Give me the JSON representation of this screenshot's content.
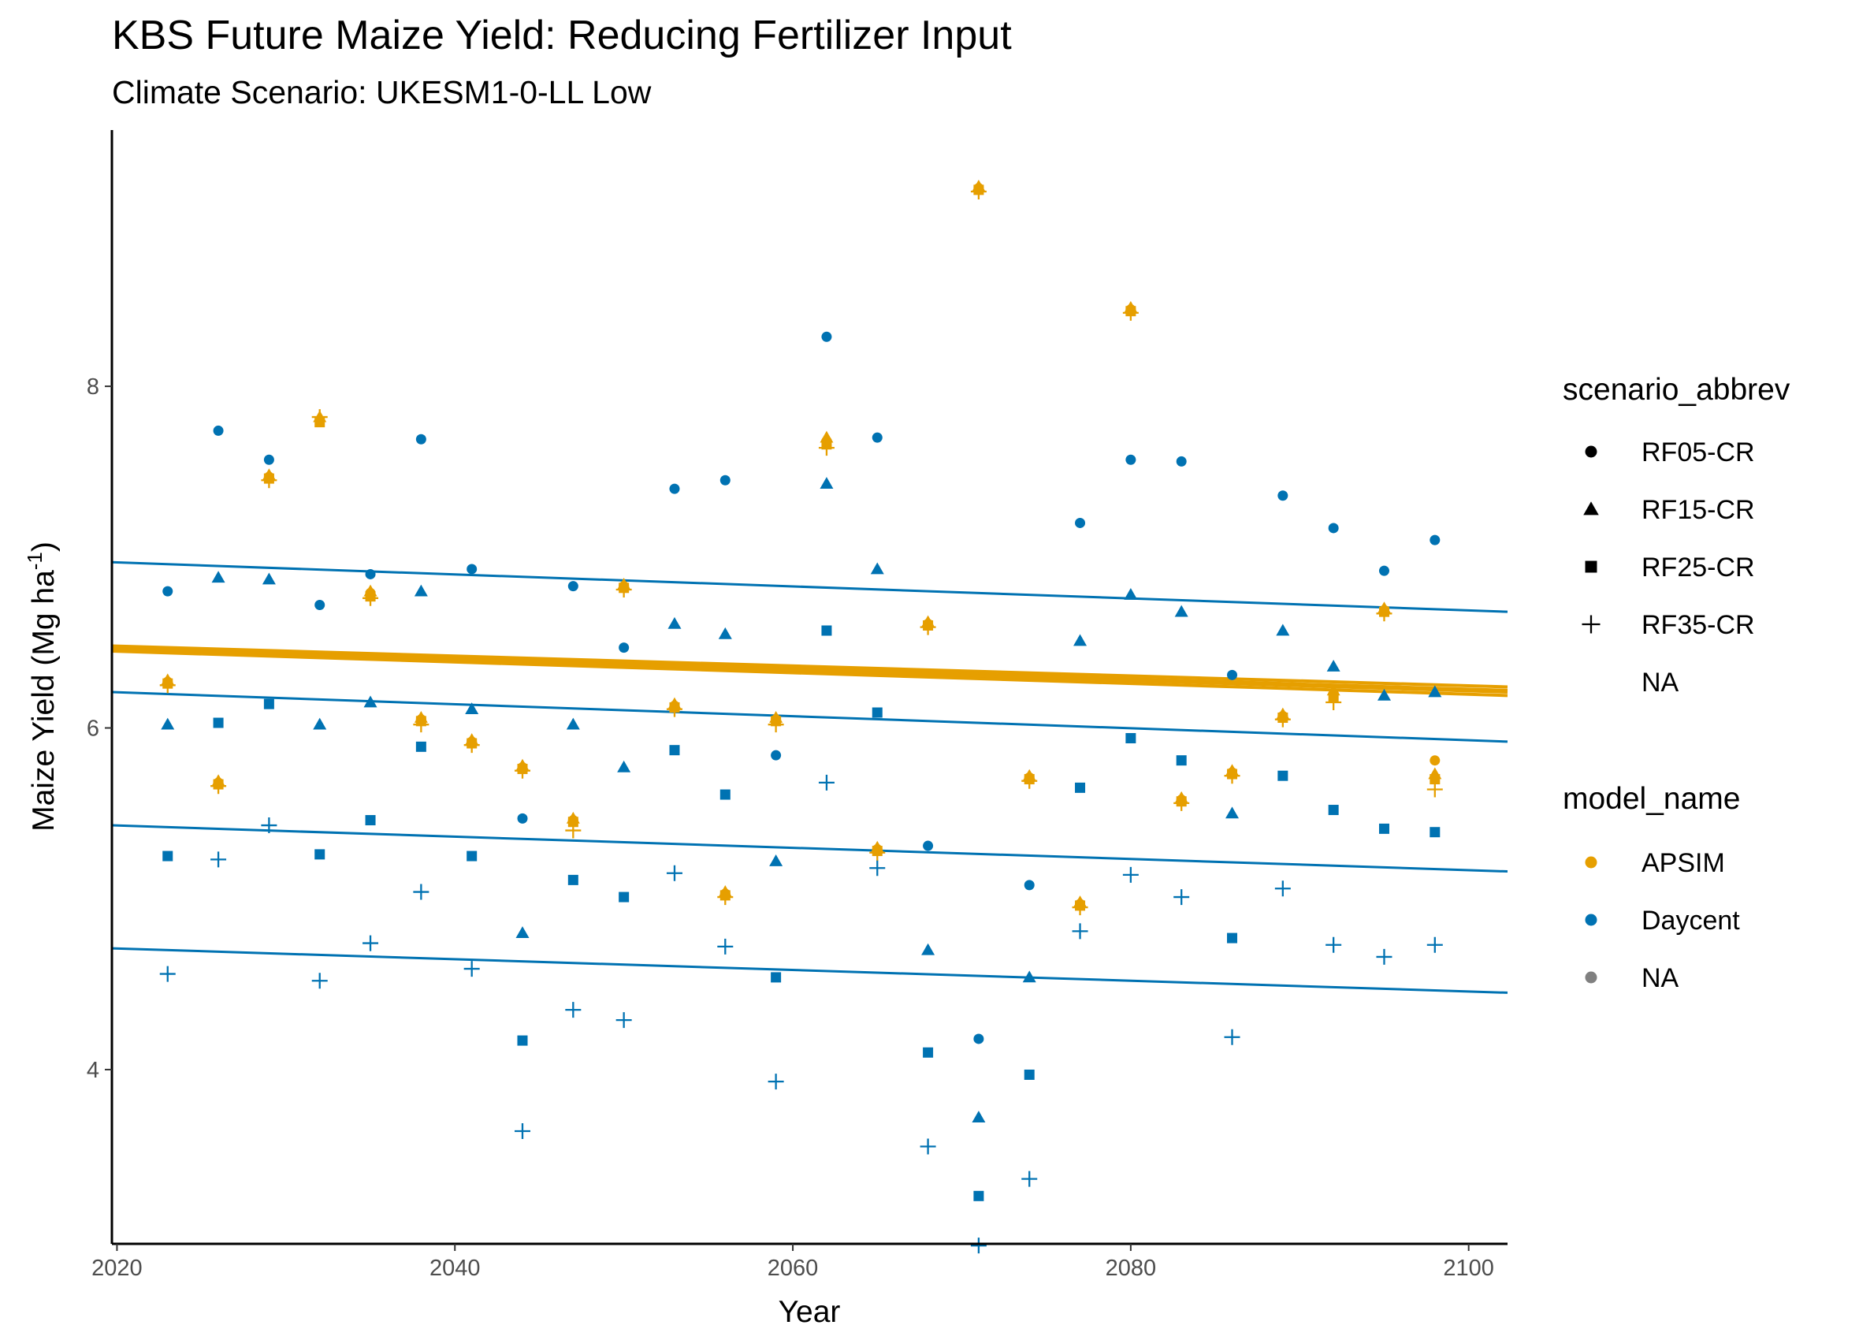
{
  "chart_data": {
    "type": "scatter",
    "title": "KBS Future Maize Yield: Reducing Fertilizer Input",
    "subtitle": "Climate Scenario: UKESM1-0-LL Low",
    "xlabel": "Year",
    "ylabel": "Maize Yield (Mg ha",
    "ylabel_sup": "-1",
    "ylabel_close": ")",
    "xlim": [
      2019.7,
      2102.3
    ],
    "ylim": [
      2.98,
      9.5
    ],
    "xticks": [
      2020,
      2040,
      2060,
      2080,
      2100
    ],
    "yticks": [
      4,
      6,
      8
    ],
    "grid": false,
    "legend_position": "right",
    "colors": {
      "APSIM": "#E69F00",
      "Daycent": "#0072B2",
      "NA": "#808080"
    },
    "shape_legend": {
      "title": "scenario_abbrev",
      "items": [
        {
          "label": "RF05-CR",
          "shape": "circle"
        },
        {
          "label": "RF15-CR",
          "shape": "triangle"
        },
        {
          "label": "RF25-CR",
          "shape": "square"
        },
        {
          "label": "RF35-CR",
          "shape": "plus"
        },
        {
          "label": "NA",
          "shape": "none"
        }
      ]
    },
    "color_legend": {
      "title": "model_name",
      "items": [
        {
          "label": "APSIM",
          "color": "#E69F00"
        },
        {
          "label": "Daycent",
          "color": "#0072B2"
        },
        {
          "label": "NA",
          "color": "#808080"
        }
      ]
    },
    "series": [
      {
        "model": "APSIM",
        "scenario": "RF05-CR",
        "shape": "circle",
        "color": "#E69F00",
        "x": [
          2023,
          2026,
          2029,
          2032,
          2035,
          2038,
          2041,
          2044,
          2047,
          2050,
          2053,
          2056,
          2059,
          2062,
          2065,
          2068,
          2071,
          2074,
          2077,
          2080,
          2083,
          2086,
          2089,
          2092,
          2095,
          2098
        ],
        "y": [
          6.27,
          5.68,
          7.47,
          7.8,
          6.79,
          6.05,
          5.92,
          5.77,
          5.46,
          6.83,
          6.13,
          5.03,
          6.05,
          7.68,
          5.29,
          6.61,
          9.16,
          5.71,
          4.97,
          8.45,
          5.58,
          5.74,
          6.07,
          6.2,
          6.69,
          5.81
        ]
      },
      {
        "model": "APSIM",
        "scenario": "RF15-CR",
        "shape": "triangle",
        "color": "#E69F00",
        "x": [
          2023,
          2026,
          2029,
          2032,
          2035,
          2038,
          2041,
          2044,
          2047,
          2050,
          2053,
          2056,
          2059,
          2062,
          2065,
          2068,
          2071,
          2074,
          2077,
          2080,
          2083,
          2086,
          2089,
          2092,
          2095,
          2098
        ],
        "y": [
          6.28,
          5.69,
          7.48,
          7.82,
          6.8,
          6.06,
          5.93,
          5.78,
          5.47,
          6.84,
          6.14,
          5.04,
          6.06,
          7.7,
          5.3,
          6.62,
          9.17,
          5.72,
          4.98,
          8.46,
          5.59,
          5.75,
          6.08,
          6.22,
          6.7,
          5.73
        ]
      },
      {
        "model": "APSIM",
        "scenario": "RF25-CR",
        "shape": "square",
        "color": "#E69F00",
        "x": [
          2023,
          2026,
          2029,
          2032,
          2035,
          2038,
          2041,
          2044,
          2047,
          2050,
          2053,
          2056,
          2059,
          2062,
          2065,
          2068,
          2071,
          2074,
          2077,
          2080,
          2083,
          2086,
          2089,
          2092,
          2095,
          2098
        ],
        "y": [
          6.26,
          5.67,
          7.46,
          7.79,
          6.77,
          6.04,
          5.91,
          5.76,
          5.45,
          6.82,
          6.12,
          5.02,
          6.04,
          7.66,
          5.28,
          6.6,
          9.15,
          5.7,
          4.96,
          8.44,
          5.57,
          5.73,
          6.06,
          6.18,
          6.68,
          5.7
        ]
      },
      {
        "model": "APSIM",
        "scenario": "RF35-CR",
        "shape": "plus",
        "color": "#E69F00",
        "x": [
          2023,
          2026,
          2029,
          2032,
          2035,
          2038,
          2041,
          2044,
          2047,
          2050,
          2053,
          2056,
          2059,
          2062,
          2065,
          2068,
          2071,
          2074,
          2077,
          2080,
          2083,
          2086,
          2089,
          2092,
          2095,
          2098
        ],
        "y": [
          6.25,
          5.66,
          7.45,
          7.82,
          6.76,
          6.02,
          5.9,
          5.75,
          5.4,
          6.81,
          6.11,
          5.01,
          6.02,
          7.64,
          5.27,
          6.59,
          9.14,
          5.69,
          4.95,
          8.43,
          5.56,
          5.72,
          6.05,
          6.15,
          6.67,
          5.64
        ]
      },
      {
        "model": "Daycent",
        "scenario": "RF05-CR",
        "shape": "circle",
        "color": "#0072B2",
        "x": [
          2023,
          2026,
          2029,
          2032,
          2035,
          2038,
          2041,
          2044,
          2047,
          2050,
          2053,
          2056,
          2059,
          2062,
          2065,
          2068,
          2071,
          2074,
          2077,
          2080,
          2083,
          2086,
          2089,
          2092,
          2095,
          2098
        ],
        "y": [
          6.8,
          7.74,
          7.57,
          6.72,
          6.9,
          7.69,
          6.93,
          5.47,
          6.83,
          6.47,
          7.4,
          7.45,
          5.84,
          8.29,
          7.7,
          5.31,
          4.18,
          5.08,
          7.2,
          7.57,
          7.56,
          6.31,
          7.36,
          7.17,
          6.92,
          7.1
        ]
      },
      {
        "model": "Daycent",
        "scenario": "RF15-CR",
        "shape": "triangle",
        "color": "#0072B2",
        "x": [
          2023,
          2026,
          2029,
          2032,
          2035,
          2038,
          2041,
          2044,
          2047,
          2050,
          2053,
          2056,
          2059,
          2062,
          2065,
          2068,
          2071,
          2074,
          2077,
          2080,
          2083,
          2086,
          2089,
          2092,
          2095,
          2098
        ],
        "y": [
          6.02,
          6.88,
          6.87,
          6.02,
          6.15,
          6.8,
          6.11,
          4.8,
          6.02,
          5.77,
          6.61,
          6.55,
          5.22,
          7.43,
          6.93,
          4.7,
          3.72,
          4.54,
          6.51,
          6.78,
          6.68,
          5.5,
          6.57,
          6.36,
          6.19,
          6.21
        ]
      },
      {
        "model": "Daycent",
        "scenario": "RF25-CR",
        "shape": "square",
        "color": "#0072B2",
        "x": [
          2023,
          2026,
          2029,
          2032,
          2035,
          2038,
          2041,
          2044,
          2047,
          2050,
          2053,
          2056,
          2059,
          2062,
          2065,
          2068,
          2071,
          2074,
          2077,
          2080,
          2083,
          2086,
          2089,
          2092,
          2095,
          2098
        ],
        "y": [
          5.25,
          6.03,
          6.14,
          5.26,
          5.46,
          5.89,
          5.25,
          4.17,
          5.11,
          5.01,
          5.87,
          5.61,
          4.54,
          6.57,
          6.09,
          4.1,
          3.26,
          3.97,
          5.65,
          5.94,
          5.81,
          4.77,
          5.72,
          5.52,
          5.41,
          5.39
        ]
      },
      {
        "model": "Daycent",
        "scenario": "RF35-CR",
        "shape": "plus",
        "color": "#0072B2",
        "x": [
          2023,
          2026,
          2029,
          2032,
          2035,
          2038,
          2041,
          2044,
          2047,
          2050,
          2053,
          2056,
          2059,
          2062,
          2065,
          2068,
          2071,
          2074,
          2077,
          2080,
          2083,
          2086,
          2089,
          2092,
          2095,
          2098
        ],
        "y": [
          4.56,
          5.23,
          5.43,
          4.52,
          4.74,
          5.04,
          4.59,
          3.64,
          4.35,
          4.29,
          5.15,
          4.72,
          3.93,
          5.68,
          5.18,
          3.55,
          2.97,
          3.36,
          4.81,
          5.14,
          5.01,
          4.19,
          5.06,
          4.73,
          4.66,
          4.73
        ]
      }
    ],
    "trend_lines": [
      {
        "model": "APSIM",
        "scenario": "RF05-CR",
        "color": "#E69F00",
        "x": [
          2019.7,
          2102.3
        ],
        "y": [
          6.47,
          6.22
        ]
      },
      {
        "model": "APSIM",
        "scenario": "RF15-CR",
        "color": "#E69F00",
        "x": [
          2019.7,
          2102.3
        ],
        "y": [
          6.48,
          6.24
        ]
      },
      {
        "model": "APSIM",
        "scenario": "RF25-CR",
        "color": "#E69F00",
        "x": [
          2019.7,
          2102.3
        ],
        "y": [
          6.46,
          6.21
        ]
      },
      {
        "model": "APSIM",
        "scenario": "RF35-CR",
        "color": "#E69F00",
        "x": [
          2019.7,
          2102.3
        ],
        "y": [
          6.45,
          6.19
        ]
      },
      {
        "model": "Daycent",
        "scenario": "RF05-CR",
        "color": "#0072B2",
        "x": [
          2019.7,
          2102.3
        ],
        "y": [
          6.97,
          6.68
        ]
      },
      {
        "model": "Daycent",
        "scenario": "RF15-CR",
        "color": "#0072B2",
        "x": [
          2019.7,
          2102.3
        ],
        "y": [
          6.21,
          5.92
        ]
      },
      {
        "model": "Daycent",
        "scenario": "RF25-CR",
        "color": "#0072B2",
        "x": [
          2019.7,
          2102.3
        ],
        "y": [
          5.43,
          5.16
        ]
      },
      {
        "model": "Daycent",
        "scenario": "RF35-CR",
        "color": "#0072B2",
        "x": [
          2019.7,
          2102.3
        ],
        "y": [
          4.71,
          4.45
        ]
      }
    ]
  }
}
